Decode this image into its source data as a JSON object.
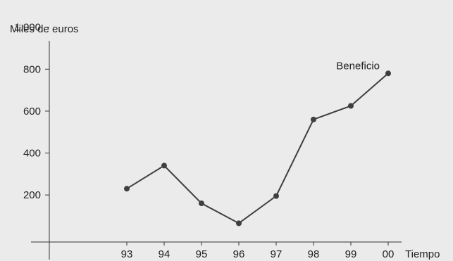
{
  "chart_data": {
    "type": "line",
    "ylabel": "Miles de euros",
    "xlabel": "Tiempo",
    "categories": [
      "93",
      "94",
      "95",
      "96",
      "97",
      "98",
      "99",
      "00"
    ],
    "series": [
      {
        "name": "Beneficio",
        "values": [
          230,
          340,
          160,
          65,
          195,
          560,
          625,
          780
        ]
      }
    ],
    "ylim": [
      -115,
      1130
    ],
    "yticks": [
      200,
      400,
      600,
      800,
      1000
    ],
    "ytick_labels": [
      "200",
      "400",
      "600",
      "800",
      "1.000"
    ],
    "grid": false,
    "colors": {
      "background": "#ebebeb",
      "line": "#3f3f3f",
      "axis": "#333333"
    }
  }
}
